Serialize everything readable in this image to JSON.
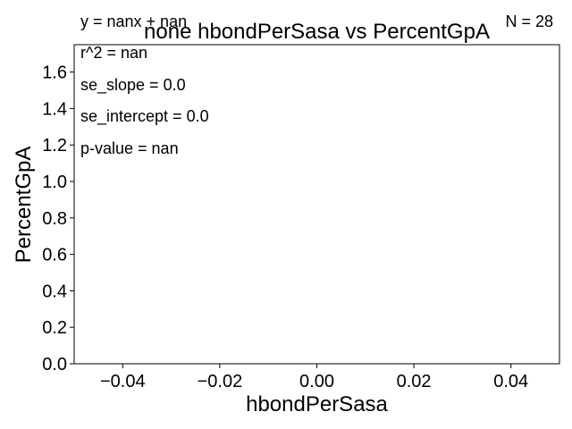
{
  "chart_data": {
    "type": "scatter",
    "title": "none hbondPerSasa vs PercentGpA",
    "xlabel": "hbondPerSasa",
    "ylabel": "PercentGpA",
    "xlim": [
      -0.05,
      0.05
    ],
    "ylim": [
      0.0,
      1.75
    ],
    "xticks": [
      -0.04,
      -0.02,
      0.0,
      0.02,
      0.04
    ],
    "xtick_labels": [
      "−0.04",
      "−0.02",
      "0.00",
      "0.02",
      "0.04"
    ],
    "yticks": [
      0.0,
      0.2,
      0.4,
      0.6,
      0.8,
      1.0,
      1.2,
      1.4,
      1.6
    ],
    "ytick_labels": [
      "0.0",
      "0.2",
      "0.4",
      "0.6",
      "0.8",
      "1.0",
      "1.2",
      "1.4",
      "1.6"
    ],
    "series": [],
    "grid": false,
    "annotations": {
      "equation": "y = nanx + nan",
      "n_count": "N = 28",
      "r_squared": "r^2 = nan",
      "se_slope": "se_slope = 0.0",
      "se_intercept": "se_intercept = 0.0",
      "p_value": "p-value = nan"
    }
  }
}
